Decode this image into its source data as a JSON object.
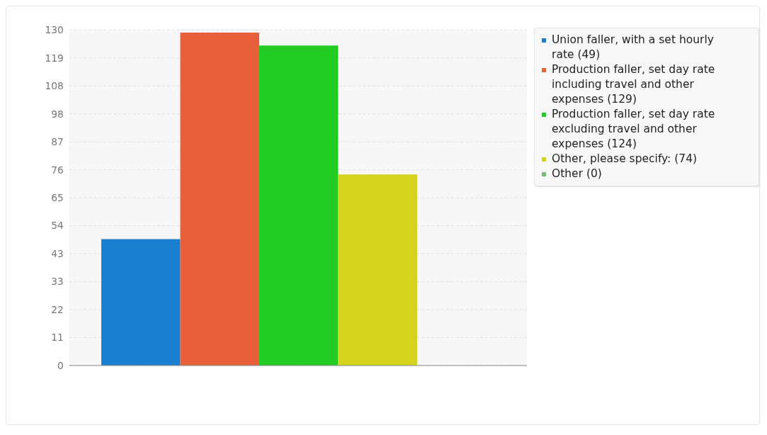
{
  "chart_data": {
    "type": "bar",
    "categories": [
      null
    ],
    "series": [
      {
        "name": "Union faller, with a set hourly rate (49)",
        "color": "#1a7fcf",
        "values": [
          49
        ]
      },
      {
        "name": "Production faller, set day rate including travel and other expenses (129)",
        "color": "#e8603a",
        "values": [
          129
        ]
      },
      {
        "name": "Production faller, set day rate excluding travel and other expenses (124)",
        "color": "#22cc22",
        "values": [
          124
        ]
      },
      {
        "name": "Other, please specify: (74)",
        "color": "#d4d41e",
        "values": [
          74
        ]
      },
      {
        "name": "Other (0)",
        "color": "#77bb77",
        "values": [
          0
        ]
      }
    ],
    "ylim": [
      0,
      130
    ],
    "yticks": [
      0,
      {
        "value": 10.83,
        "label": "11"
      },
      {
        "value": 21.67,
        "label": "22"
      },
      {
        "value": 32.5,
        "label": "33"
      },
      {
        "value": 43.33,
        "label": "43"
      },
      {
        "value": 54.17,
        "label": "54"
      },
      65,
      {
        "value": 75.83,
        "label": "76"
      },
      {
        "value": 86.67,
        "label": "87"
      },
      {
        "value": 97.5,
        "label": "98"
      },
      {
        "value": 108.33,
        "label": "108"
      },
      {
        "value": 119.17,
        "label": "119"
      },
      130
    ],
    "grid": "y",
    "legend": "right"
  }
}
